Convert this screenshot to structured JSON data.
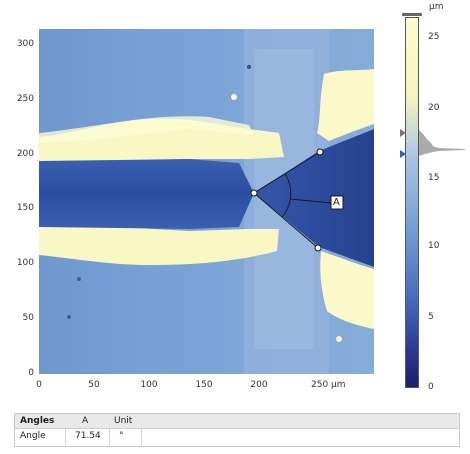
{
  "image_view": {
    "y_ticks": [
      "300",
      "250",
      "200",
      "150",
      "100",
      "50",
      "0"
    ],
    "x_ticks": [
      "0",
      "50",
      "100",
      "150",
      "200",
      "250 µm"
    ],
    "marker_label": "A"
  },
  "color_scale": {
    "unit": "µm",
    "ticks": [
      "25",
      "20",
      "15",
      "10",
      "5",
      "0"
    ],
    "colors": {
      "high": "#fdfcce",
      "mid": "#7aa3d6",
      "low": "#1a1f6e"
    }
  },
  "results_table": {
    "headers": [
      "Angles",
      "A",
      "Unit"
    ],
    "row": {
      "name": "Angle",
      "value": "71.54",
      "unit": "°"
    }
  }
}
